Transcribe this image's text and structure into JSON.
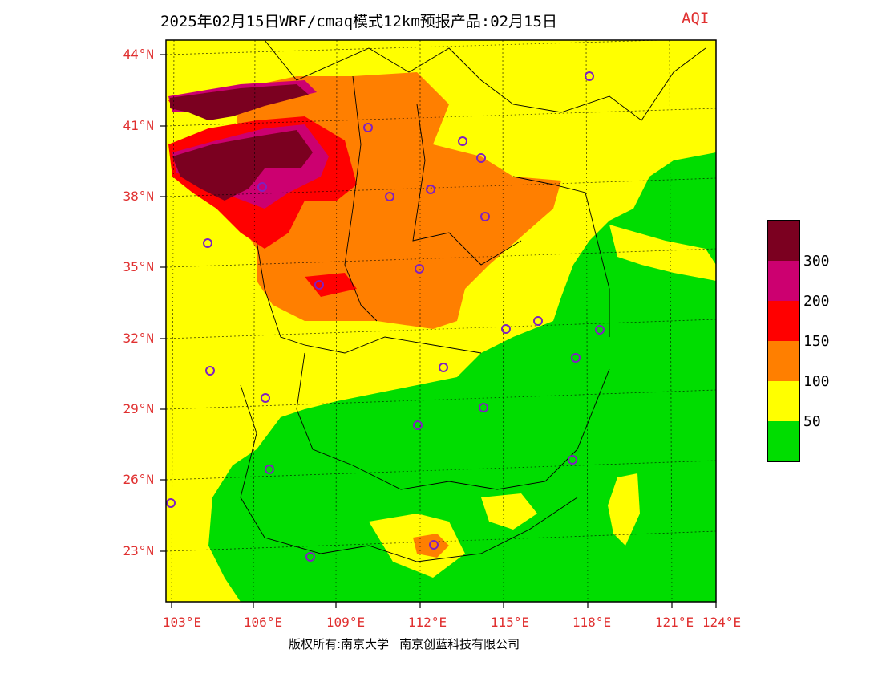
{
  "title": "2025年02月15日WRF/cmaq模式12km预报产品:02月15日",
  "title_aqi": "AQI",
  "lat_labels": [
    "44°N",
    "41°N",
    "38°N",
    "35°N",
    "32°N",
    "29°N",
    "26°N",
    "23°N"
  ],
  "lon_labels": [
    "103°E",
    "106°E",
    "109°E",
    "112°E",
    "115°E",
    "118°E",
    "121°E",
    "124°E"
  ],
  "legend": {
    "levels": [
      {
        "color": "#7b0020"
      },
      {
        "color": "#cc0070"
      },
      {
        "color": "#ff0000"
      },
      {
        "color": "#ff7f00"
      },
      {
        "color": "#ffff00"
      },
      {
        "color": "#00dd00"
      }
    ],
    "labels": [
      "300",
      "200",
      "150",
      "100",
      "50"
    ]
  },
  "copyright_left": "版权所有:南京大学",
  "copyright_right": "南京创蓝科技有限公司",
  "colors": {
    "label_red": "#e03030",
    "station_marker": "#8020c0"
  }
}
